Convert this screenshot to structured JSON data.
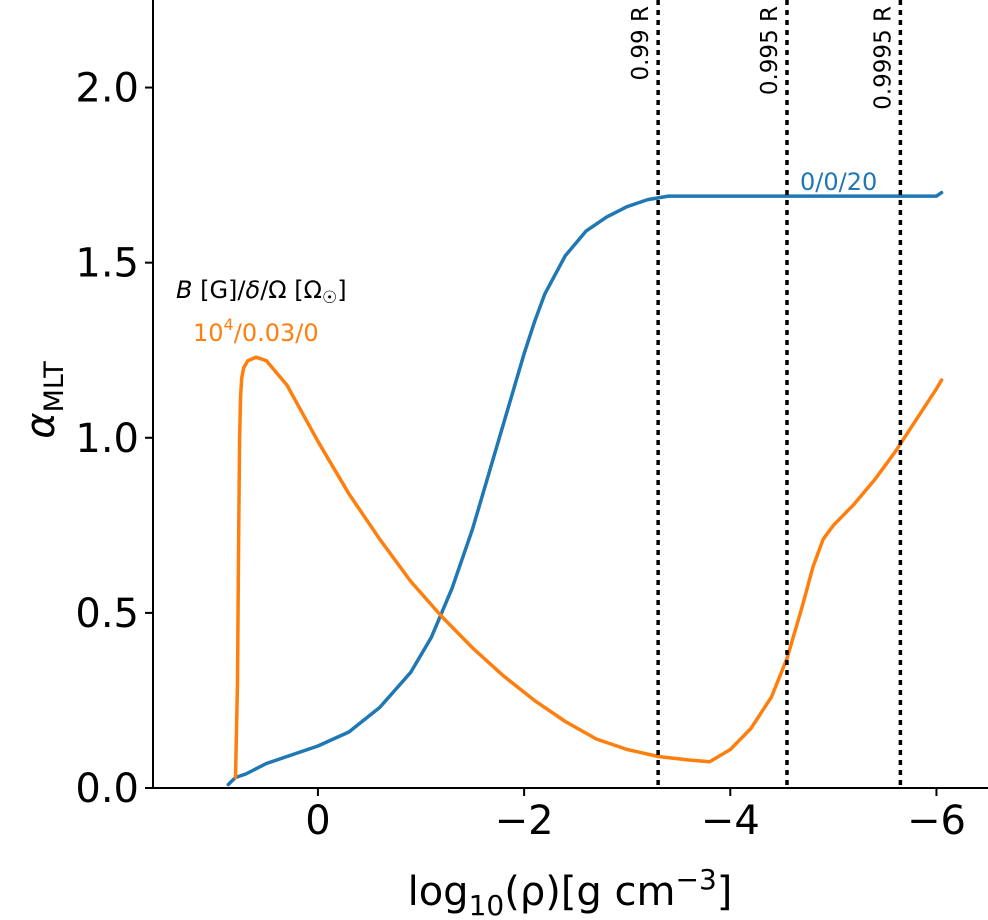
{
  "chart_data": {
    "type": "line",
    "xlabel": "log₁₀(ρ)[g cm⁻³]",
    "xlabel_parts": {
      "pre": "log",
      "sub": "10",
      "mid": "(ρ)[g cm",
      "sup": "−3",
      "post": "]"
    },
    "ylabel": "α_MLT",
    "ylabel_parts": {
      "main": "α",
      "sub": "MLT"
    },
    "xlim": [
      1.6,
      -6.5
    ],
    "ylim": [
      0.0,
      2.25
    ],
    "x_inverted": true,
    "xticks": [
      0,
      -2,
      -4,
      -6
    ],
    "xtick_labels": [
      "0",
      "−2",
      "−4",
      "−6"
    ],
    "yticks": [
      0.0,
      0.5,
      1.0,
      1.5,
      2.0
    ],
    "ytick_labels": [
      "0.0",
      "0.5",
      "1.0",
      "1.5",
      "2.0"
    ],
    "grid": false,
    "legend_title": "B [G]/δ/Ω [Ω☉]",
    "legend_title_parts": {
      "a": "B",
      "b": " [G]/",
      "c": "δ",
      "d": "/Ω [Ω",
      "sub": "☉",
      "e": "]"
    },
    "series": [
      {
        "name": "0/0/20",
        "color": "#1f77b4",
        "x": [
          0.87,
          0.8,
          0.7,
          0.5,
          0.3,
          0.0,
          -0.3,
          -0.6,
          -0.9,
          -1.1,
          -1.3,
          -1.5,
          -1.7,
          -1.9,
          -2.0,
          -2.1,
          -2.2,
          -2.4,
          -2.6,
          -2.8,
          -3.0,
          -3.2,
          -3.4,
          -3.6,
          -3.8,
          -4.0,
          -4.3,
          -4.6,
          -5.0,
          -5.4,
          -5.7,
          -6.0,
          -6.05
        ],
        "y": [
          0.01,
          0.03,
          0.04,
          0.07,
          0.09,
          0.12,
          0.16,
          0.23,
          0.33,
          0.43,
          0.57,
          0.74,
          0.94,
          1.14,
          1.24,
          1.33,
          1.41,
          1.52,
          1.59,
          1.63,
          1.66,
          1.68,
          1.69,
          1.69,
          1.69,
          1.69,
          1.69,
          1.69,
          1.69,
          1.69,
          1.69,
          1.69,
          1.7
        ]
      },
      {
        "name": "10⁴/0.03/0",
        "name_parts": {
          "base": "10",
          "sup": "4",
          "rest": "/0.03/0"
        },
        "color": "#ff7f0e",
        "x": [
          0.8,
          0.78,
          0.77,
          0.76,
          0.75,
          0.74,
          0.72,
          0.68,
          0.6,
          0.5,
          0.3,
          0.0,
          -0.3,
          -0.6,
          -0.9,
          -1.2,
          -1.5,
          -1.8,
          -2.1,
          -2.4,
          -2.7,
          -3.0,
          -3.3,
          -3.6,
          -3.8,
          -4.0,
          -4.2,
          -4.4,
          -4.55,
          -4.7,
          -4.8,
          -4.9,
          -5.0,
          -5.2,
          -5.4,
          -5.6,
          -5.8,
          -6.0,
          -6.05
        ],
        "y": [
          0.03,
          0.3,
          0.7,
          1.0,
          1.12,
          1.17,
          1.2,
          1.22,
          1.23,
          1.22,
          1.15,
          0.99,
          0.84,
          0.71,
          0.59,
          0.49,
          0.4,
          0.32,
          0.25,
          0.19,
          0.14,
          0.11,
          0.09,
          0.08,
          0.075,
          0.11,
          0.17,
          0.26,
          0.37,
          0.52,
          0.63,
          0.71,
          0.75,
          0.81,
          0.88,
          0.96,
          1.05,
          1.14,
          1.165
        ]
      }
    ],
    "vlines": [
      {
        "x": -3.3,
        "label": "0.99 R"
      },
      {
        "x": -4.55,
        "label": "0.995 R"
      },
      {
        "x": -5.65,
        "label": "0.9995 R"
      }
    ]
  }
}
